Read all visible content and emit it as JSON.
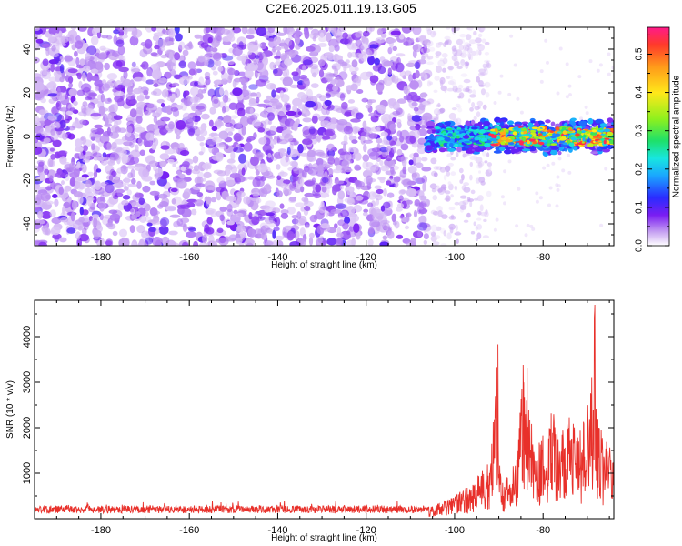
{
  "figure": {
    "title": "C2E6.2025.011.19.13.G05"
  },
  "colors": {
    "spectrogram_low": "#e9d6f7",
    "spectrogram_mid": "#7a1df2",
    "snr_line": "#e8302a",
    "axis": "#000000"
  },
  "chart_data": [
    {
      "type": "heatmap",
      "xlabel": "Height of straight line (km)",
      "ylabel": "Frequency (Hz)",
      "xlim": [
        -195,
        -64
      ],
      "ylim": [
        -50,
        50
      ],
      "x_ticks": [
        -180,
        -160,
        -140,
        -120,
        -100,
        -80
      ],
      "y_ticks": [
        -40,
        -20,
        0,
        20,
        40
      ],
      "colorbar": {
        "label": "Normalized spectral amplitude",
        "range": [
          0,
          0.57
        ],
        "ticks": [
          0.0,
          0.1,
          0.2,
          0.3,
          0.4,
          0.5
        ],
        "colormap": "rainbow"
      },
      "description_regions": [
        {
          "x_range": [
            -195,
            -106
          ],
          "freq_range": [
            -50,
            50
          ],
          "amplitude": 0.05
        },
        {
          "x_range": [
            -106,
            -94
          ],
          "freq_range": [
            -50,
            50
          ],
          "amplitude": 0.02
        },
        {
          "x_range": [
            -106,
            -64
          ],
          "freq_range": [
            -8,
            8
          ],
          "amplitude": 0.3
        },
        {
          "x_range": [
            -94,
            -64
          ],
          "freq_range": [
            -4,
            4
          ],
          "amplitude": 0.4
        }
      ]
    },
    {
      "type": "line",
      "xlabel": "Height of straight line (km)",
      "ylabel": "SNR (10 * v/v)",
      "xlim": [
        -195,
        -64
      ],
      "ylim": [
        0,
        4800
      ],
      "x_ticks": [
        -180,
        -160,
        -140,
        -120,
        -100,
        -80
      ],
      "y_ticks": [
        1000,
        2000,
        3000,
        4000
      ],
      "series": [
        {
          "x": [
            -195,
            -180,
            -160,
            -140,
            -120,
            -106,
            -100,
            -96,
            -92,
            -90.2,
            -90,
            -89,
            -86,
            -84.5,
            -84,
            -83.6,
            -82,
            -80,
            -78,
            -76,
            -74,
            -72,
            -70,
            -68.3,
            -68,
            -66,
            -64
          ],
          "values": [
            170,
            210,
            210,
            200,
            210,
            260,
            500,
            800,
            1300,
            3830,
            1500,
            800,
            1400,
            3380,
            2300,
            3320,
            1500,
            1900,
            2600,
            1900,
            2300,
            1800,
            2500,
            4700,
            2500,
            1800,
            1400
          ]
        }
      ]
    }
  ]
}
